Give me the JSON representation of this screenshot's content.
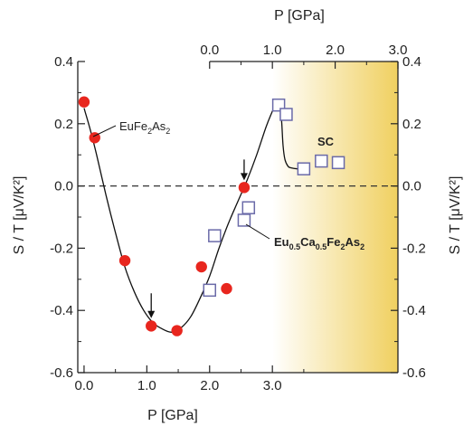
{
  "chart_data": {
    "type": "scatter",
    "bottom_axis": {
      "label": "P [GPa]",
      "range": [
        -0.1,
        5.0
      ],
      "ticks": [
        0.0,
        1.0,
        2.0,
        3.0
      ],
      "tick_labels": [
        "0.0",
        "1.0",
        "2.0",
        "3.0"
      ]
    },
    "top_axis": {
      "label": "P [GPa]",
      "offset_from_bottom": 2.0,
      "ticks": [
        0.0,
        1.0,
        2.0,
        3.0
      ],
      "tick_labels": [
        "0.0",
        "1.0",
        "2.0",
        "3.0"
      ]
    },
    "left_axis": {
      "label": "S / T  [μV/K²]",
      "range": [
        -0.6,
        0.4
      ],
      "ticks": [
        -0.6,
        -0.4,
        -0.2,
        0.0,
        0.2,
        0.4
      ],
      "tick_labels": [
        "-0.6",
        "-0.4",
        "-0.2",
        "0.0",
        "0.2",
        "0.4"
      ]
    },
    "right_axis": {
      "label": "S / T  [μV/K²]",
      "ticks": [
        -0.6,
        -0.4,
        -0.2,
        0.0,
        0.2,
        0.4
      ],
      "tick_labels": [
        "-0.6",
        "-0.4",
        "-0.2",
        "0.0",
        "0.2",
        "0.4"
      ]
    },
    "zero_line": true,
    "sc_region": {
      "x_start": 3.0,
      "x_end": 5.0,
      "color_from": "#ffffff",
      "color_to": "#f0d060"
    },
    "series": [
      {
        "label_main": "EuFe",
        "label_sub1": "2",
        "label_mid": "As",
        "label_sub2": "2",
        "marker": "filled-circle",
        "color": "#e8261e",
        "x": [
          0.0,
          0.17,
          0.65,
          1.07,
          1.48,
          1.87,
          2.27,
          2.55
        ],
        "y": [
          0.27,
          0.155,
          -0.24,
          -0.45,
          -0.465,
          -0.26,
          -0.33,
          -0.005
        ]
      },
      {
        "label_main": "Eu",
        "label_sub1": "0.5",
        "label_mid": "Ca",
        "label_sub2": "0.5",
        "label_tail": "Fe",
        "label_sub3": "2",
        "label_end": "As",
        "label_sub4": "2",
        "marker": "open-square",
        "color": "#6a6aa8",
        "x": [
          2.0,
          2.08,
          2.55,
          2.62,
          3.1,
          3.22,
          3.5,
          3.78,
          4.05
        ],
        "y": [
          -0.335,
          -0.16,
          -0.11,
          -0.07,
          0.26,
          0.23,
          0.055,
          0.08,
          0.075
        ]
      }
    ],
    "fit_curve": {
      "x": [
        0.0,
        0.1,
        0.2,
        0.35,
        0.5,
        0.65,
        0.8,
        0.95,
        1.1,
        1.25,
        1.4,
        1.55,
        1.7,
        1.85,
        2.0,
        2.15,
        2.3,
        2.45,
        2.6,
        2.75,
        2.9,
        3.0,
        3.05,
        3.1,
        3.13,
        3.15,
        3.17,
        3.2,
        3.25,
        3.3,
        3.4,
        3.5
      ],
      "y": [
        0.25,
        0.18,
        0.1,
        -0.03,
        -0.15,
        -0.26,
        -0.34,
        -0.4,
        -0.44,
        -0.46,
        -0.47,
        -0.455,
        -0.42,
        -0.36,
        -0.29,
        -0.2,
        -0.12,
        -0.05,
        0.02,
        0.1,
        0.19,
        0.24,
        0.26,
        0.27,
        0.25,
        0.2,
        0.13,
        0.085,
        0.063,
        0.058,
        0.055,
        0.055
      ]
    },
    "arrows": [
      {
        "x": 1.07,
        "y_from": -0.345,
        "y_to": -0.425
      },
      {
        "x": 2.55,
        "y_from": 0.085,
        "y_to": 0.018
      }
    ],
    "annotations": {
      "sc": "SC"
    }
  }
}
